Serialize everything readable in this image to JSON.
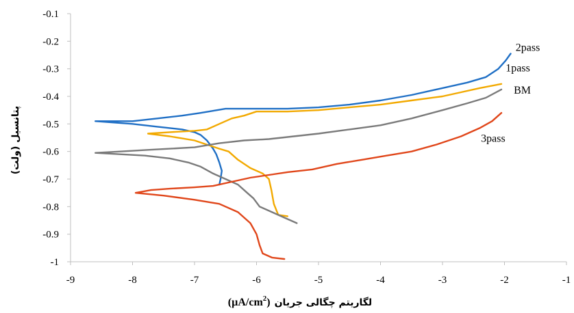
{
  "chart_data": {
    "type": "line",
    "title": "",
    "xlabel": "لگاریتم چگالی جریان (µA/cm²)",
    "xlabel_parts": {
      "text": "لگاریتم چگالی جریان",
      "unit": "(µA/cm",
      "sup": "2",
      "close": ")"
    },
    "ylabel": "پتانسیل (ولت)",
    "xlim": [
      -9,
      -1
    ],
    "ylim": [
      -1,
      -0.1
    ],
    "x_ticks": [
      "-9",
      "-8",
      "-7",
      "-6",
      "-5",
      "-4",
      "-3",
      "-2",
      "-1"
    ],
    "y_ticks": [
      "-0.1",
      "-0.2",
      "-0.3",
      "-0.4",
      "-0.5",
      "-0.6",
      "-0.7",
      "-0.8",
      "-0.9",
      "-1"
    ],
    "x_tick_values": [
      -9,
      -8,
      -7,
      -6,
      -5,
      -4,
      -3,
      -2,
      -1
    ],
    "y_tick_values": [
      -0.1,
      -0.2,
      -0.3,
      -0.4,
      -0.5,
      -0.6,
      -0.7,
      -0.8,
      -0.9,
      -1
    ],
    "grid": false,
    "legend": "inline labels at right ends of curves",
    "series": [
      {
        "name": "2pass",
        "color": "#1f6fc5",
        "points": [
          [
            -6.6,
            -0.72
          ],
          [
            -6.58,
            -0.7
          ],
          [
            -6.56,
            -0.67
          ],
          [
            -6.6,
            -0.64
          ],
          [
            -6.65,
            -0.61
          ],
          [
            -6.7,
            -0.59
          ],
          [
            -6.8,
            -0.56
          ],
          [
            -6.9,
            -0.54
          ],
          [
            -7.0,
            -0.53
          ],
          [
            -7.2,
            -0.52
          ],
          [
            -7.6,
            -0.51
          ],
          [
            -8.0,
            -0.5
          ],
          [
            -8.3,
            -0.495
          ],
          [
            -8.6,
            -0.49
          ],
          [
            -8.0,
            -0.49
          ],
          [
            -7.6,
            -0.48
          ],
          [
            -7.2,
            -0.47
          ],
          [
            -6.9,
            -0.46
          ],
          [
            -6.5,
            -0.445
          ],
          [
            -6.0,
            -0.445
          ],
          [
            -5.5,
            -0.445
          ],
          [
            -5.0,
            -0.44
          ],
          [
            -4.5,
            -0.43
          ],
          [
            -4.0,
            -0.415
          ],
          [
            -3.5,
            -0.395
          ],
          [
            -3.0,
            -0.37
          ],
          [
            -2.6,
            -0.35
          ],
          [
            -2.3,
            -0.33
          ],
          [
            -2.1,
            -0.3
          ],
          [
            -1.98,
            -0.27
          ],
          [
            -1.9,
            -0.245
          ]
        ]
      },
      {
        "name": "1pass",
        "color": "#f2a900",
        "points": [
          [
            -5.5,
            -0.835
          ],
          [
            -5.65,
            -0.83
          ],
          [
            -5.72,
            -0.79
          ],
          [
            -5.76,
            -0.74
          ],
          [
            -5.8,
            -0.7
          ],
          [
            -5.9,
            -0.68
          ],
          [
            -6.1,
            -0.66
          ],
          [
            -6.3,
            -0.63
          ],
          [
            -6.45,
            -0.6
          ],
          [
            -6.6,
            -0.59
          ],
          [
            -6.8,
            -0.575
          ],
          [
            -7.0,
            -0.56
          ],
          [
            -7.4,
            -0.545
          ],
          [
            -7.75,
            -0.535
          ],
          [
            -7.4,
            -0.53
          ],
          [
            -7.0,
            -0.525
          ],
          [
            -6.8,
            -0.52
          ],
          [
            -6.6,
            -0.5
          ],
          [
            -6.4,
            -0.48
          ],
          [
            -6.2,
            -0.47
          ],
          [
            -6.0,
            -0.455
          ],
          [
            -5.5,
            -0.455
          ],
          [
            -5.0,
            -0.45
          ],
          [
            -4.5,
            -0.44
          ],
          [
            -4.0,
            -0.43
          ],
          [
            -3.5,
            -0.415
          ],
          [
            -3.0,
            -0.4
          ],
          [
            -2.7,
            -0.385
          ],
          [
            -2.4,
            -0.37
          ],
          [
            -2.05,
            -0.355
          ]
        ]
      },
      {
        "name": "BM",
        "color": "#7a7a7a",
        "points": [
          [
            -5.35,
            -0.86
          ],
          [
            -5.55,
            -0.84
          ],
          [
            -5.75,
            -0.82
          ],
          [
            -5.95,
            -0.8
          ],
          [
            -6.05,
            -0.77
          ],
          [
            -6.15,
            -0.75
          ],
          [
            -6.3,
            -0.72
          ],
          [
            -6.5,
            -0.7
          ],
          [
            -6.7,
            -0.68
          ],
          [
            -6.9,
            -0.655
          ],
          [
            -7.1,
            -0.64
          ],
          [
            -7.4,
            -0.625
          ],
          [
            -7.8,
            -0.615
          ],
          [
            -8.2,
            -0.61
          ],
          [
            -8.6,
            -0.605
          ],
          [
            -8.2,
            -0.6
          ],
          [
            -7.8,
            -0.595
          ],
          [
            -7.4,
            -0.59
          ],
          [
            -7.0,
            -0.585
          ],
          [
            -6.6,
            -0.57
          ],
          [
            -6.2,
            -0.56
          ],
          [
            -5.8,
            -0.555
          ],
          [
            -5.4,
            -0.545
          ],
          [
            -5.0,
            -0.535
          ],
          [
            -4.5,
            -0.52
          ],
          [
            -4.0,
            -0.505
          ],
          [
            -3.5,
            -0.48
          ],
          [
            -3.0,
            -0.45
          ],
          [
            -2.6,
            -0.425
          ],
          [
            -2.3,
            -0.405
          ],
          [
            -2.05,
            -0.375
          ]
        ]
      },
      {
        "name": "3pass",
        "color": "#e0461a",
        "points": [
          [
            -5.55,
            -0.99
          ],
          [
            -5.75,
            -0.985
          ],
          [
            -5.9,
            -0.97
          ],
          [
            -5.95,
            -0.94
          ],
          [
            -6.0,
            -0.9
          ],
          [
            -6.1,
            -0.86
          ],
          [
            -6.3,
            -0.82
          ],
          [
            -6.6,
            -0.79
          ],
          [
            -7.0,
            -0.775
          ],
          [
            -7.5,
            -0.76
          ],
          [
            -7.95,
            -0.75
          ],
          [
            -7.7,
            -0.74
          ],
          [
            -7.4,
            -0.735
          ],
          [
            -7.0,
            -0.73
          ],
          [
            -6.7,
            -0.725
          ],
          [
            -6.4,
            -0.71
          ],
          [
            -6.1,
            -0.695
          ],
          [
            -5.8,
            -0.685
          ],
          [
            -5.5,
            -0.675
          ],
          [
            -5.1,
            -0.665
          ],
          [
            -4.7,
            -0.645
          ],
          [
            -4.3,
            -0.63
          ],
          [
            -3.9,
            -0.615
          ],
          [
            -3.5,
            -0.6
          ],
          [
            -3.1,
            -0.575
          ],
          [
            -2.7,
            -0.545
          ],
          [
            -2.4,
            -0.515
          ],
          [
            -2.2,
            -0.49
          ],
          [
            -2.05,
            -0.46
          ]
        ]
      }
    ],
    "series_label_positions": {
      "2pass": [
        -1.82,
        -0.235
      ],
      "1pass": [
        -1.98,
        -0.31
      ],
      "BM": [
        -1.85,
        -0.39
      ],
      "3pass": [
        -2.38,
        -0.565
      ]
    }
  }
}
